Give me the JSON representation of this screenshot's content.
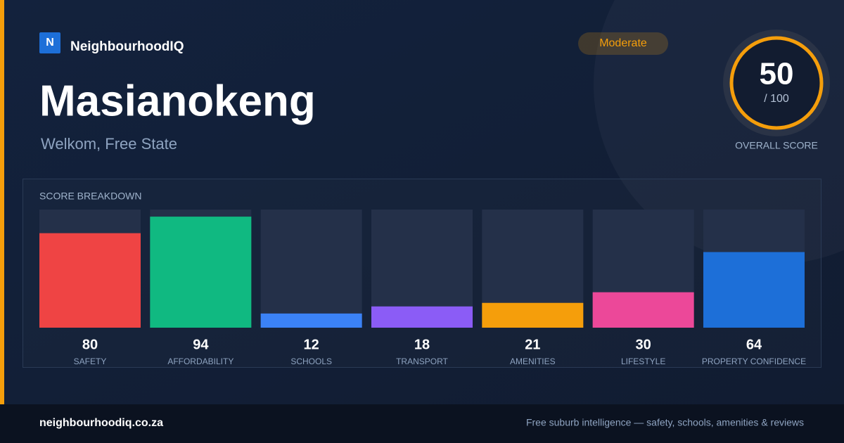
{
  "brand": {
    "logo_letter": "N",
    "name": "NeighbourhoodIQ"
  },
  "suburb": {
    "name": "Masianokeng",
    "location": "Welkom, Free State"
  },
  "rating": "Moderate",
  "overall_score": {
    "value": 50,
    "max": {
      "value": 100,
      "label": "/ 100"
    },
    "caption": "OVERALL SCORE"
  },
  "breakdown": {
    "title": "SCORE BREAKDOWN",
    "items": [
      {
        "label": "SAFETY",
        "value": 80,
        "color": "#ef4444"
      },
      {
        "label": "AFFORDABILITY",
        "value": 94,
        "color": "#10b981"
      },
      {
        "label": "SCHOOLS",
        "value": 12,
        "color": "#3b82f6"
      },
      {
        "label": "TRANSPORT",
        "value": 18,
        "color": "#8b5cf6"
      },
      {
        "label": "AMENITIES",
        "value": 21,
        "color": "#f59e0b"
      },
      {
        "label": "LIFESTYLE",
        "value": 30,
        "color": "#ec4899"
      },
      {
        "label": "PROPERTY CONFIDENCE",
        "value": 64,
        "color": "#1d6fd8"
      }
    ]
  },
  "footer": {
    "url": "neighbourhoodiq.co.za",
    "tagline": "Free suburb intelligence — safety, schools, amenities & reviews"
  }
}
